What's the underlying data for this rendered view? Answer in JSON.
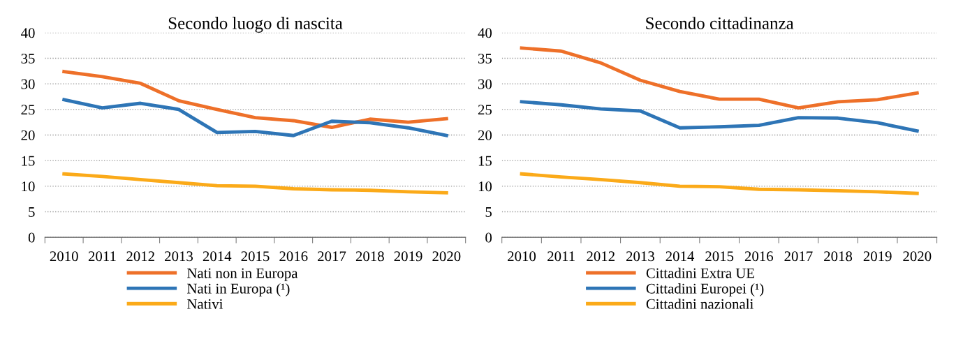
{
  "chart_data": [
    {
      "type": "line",
      "title": "Secondo luogo di nascita",
      "categories": [
        "2010",
        "2011",
        "2012",
        "2013",
        "2014",
        "2015",
        "2016",
        "2017",
        "2018",
        "2019",
        "2020"
      ],
      "series": [
        {
          "name": "Nati non in Europa",
          "color": "#ee7029",
          "values": [
            32.4,
            31.4,
            30.1,
            26.7,
            25.0,
            23.4,
            22.8,
            21.5,
            23.1,
            22.5,
            23.2
          ]
        },
        {
          "name": "Nati in Europa (¹)",
          "color": "#2e75b6",
          "values": [
            26.9,
            25.3,
            26.2,
            25.0,
            20.5,
            20.7,
            19.9,
            22.7,
            22.4,
            21.4,
            19.9
          ]
        },
        {
          "name": "Nativi",
          "color": "#fbaa19",
          "values": [
            12.4,
            11.9,
            11.3,
            10.7,
            10.1,
            10.0,
            9.5,
            9.3,
            9.2,
            8.9,
            8.7
          ]
        }
      ],
      "ylim": [
        0,
        40
      ],
      "yticks": [
        0,
        5,
        10,
        15,
        20,
        25,
        30,
        35,
        40
      ],
      "grid": "y",
      "legend": "bottom",
      "marker": "none",
      "line_style": "solid"
    },
    {
      "type": "line",
      "title": "Secondo cittadinanza",
      "categories": [
        "2010",
        "2011",
        "2012",
        "2013",
        "2014",
        "2015",
        "2016",
        "2017",
        "2018",
        "2019",
        "2020"
      ],
      "series": [
        {
          "name": "Cittadini Extra UE",
          "color": "#ee7029",
          "values": [
            37.0,
            36.4,
            34.1,
            30.7,
            28.5,
            27.0,
            27.0,
            25.3,
            26.5,
            26.9,
            28.2
          ]
        },
        {
          "name": "Cittadini Europei (¹)",
          "color": "#2e75b6",
          "values": [
            26.5,
            25.9,
            25.1,
            24.7,
            21.4,
            21.6,
            21.9,
            23.4,
            23.3,
            22.4,
            20.8
          ]
        },
        {
          "name": "Cittadini nazionali",
          "color": "#fbaa19",
          "values": [
            12.4,
            11.8,
            11.3,
            10.7,
            10.0,
            9.9,
            9.4,
            9.3,
            9.1,
            8.9,
            8.6
          ]
        }
      ],
      "ylim": [
        0,
        40
      ],
      "yticks": [
        0,
        5,
        10,
        15,
        20,
        25,
        30,
        35,
        40
      ],
      "grid": "y",
      "legend": "bottom",
      "marker": "none",
      "line_style": "solid"
    }
  ]
}
